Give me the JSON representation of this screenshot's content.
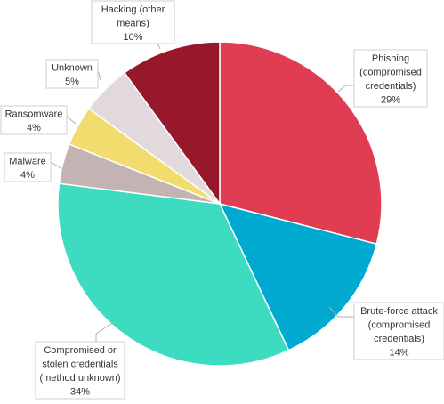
{
  "chart_data": {
    "type": "pie",
    "start_angle_deg": 0,
    "direction": "clockwise",
    "slices": [
      {
        "label_lines": [
          "Phishing",
          "(compromised",
          "credentials)"
        ],
        "value_label": "29%",
        "value": 29,
        "color": "#e03c52"
      },
      {
        "label_lines": [
          "Brute-force attack",
          "(compromised",
          "credentials)"
        ],
        "value_label": "14%",
        "value": 14,
        "color": "#00a9cf"
      },
      {
        "label_lines": [
          "Compromised or",
          "stolen credentials",
          "(method unknown)"
        ],
        "value_label": "34%",
        "value": 34,
        "color": "#3ddcc0"
      },
      {
        "label_lines": [
          "Malware"
        ],
        "value_label": "4%",
        "value": 4,
        "color": "#c4b3b3"
      },
      {
        "label_lines": [
          "Ransomware"
        ],
        "value_label": "4%",
        "value": 4,
        "color": "#f2dc6d"
      },
      {
        "label_lines": [
          "Unknown"
        ],
        "value_label": "5%",
        "value": 5,
        "color": "#e2d9dd"
      },
      {
        "label_lines": [
          "Hacking (other",
          "means)"
        ],
        "value_label": "10%",
        "value": 10,
        "color": "#97182b"
      }
    ]
  }
}
